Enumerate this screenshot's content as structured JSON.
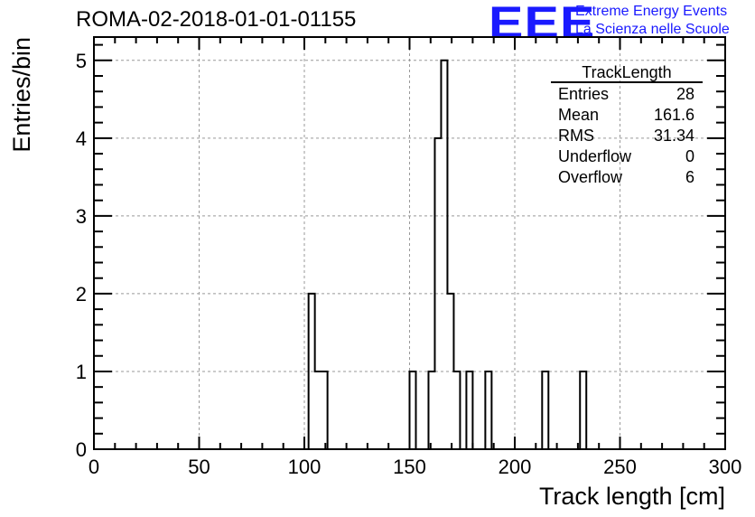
{
  "header": {
    "title": "ROMA-02-2018-01-01-01155",
    "logo_text": "EEE",
    "logo_line1": "Extreme Energy Events",
    "logo_line2": "La Scienza nelle Scuole"
  },
  "stats": {
    "name": "TrackLength",
    "rows": [
      {
        "label": "Entries",
        "value": "28"
      },
      {
        "label": "Mean",
        "value": "161.6"
      },
      {
        "label": "RMS",
        "value": "31.34"
      },
      {
        "label": "Underflow",
        "value": "0"
      },
      {
        "label": "Overflow",
        "value": "6"
      }
    ]
  },
  "chart_data": {
    "type": "bar",
    "title": "ROMA-02-2018-01-01-01155",
    "xlabel": "Track length [cm]",
    "ylabel": "Entries/bin",
    "xlim": [
      0,
      300
    ],
    "ylim": [
      0,
      5.3
    ],
    "bin_width": 3,
    "grid": true,
    "xticks": [
      0,
      50,
      100,
      150,
      200,
      250,
      300
    ],
    "yticks": [
      0,
      1,
      2,
      3,
      4,
      5
    ],
    "bins": [
      {
        "x": 102,
        "count": 2
      },
      {
        "x": 105,
        "count": 1
      },
      {
        "x": 108,
        "count": 1
      },
      {
        "x": 150,
        "count": 1
      },
      {
        "x": 159,
        "count": 1
      },
      {
        "x": 162,
        "count": 4
      },
      {
        "x": 165,
        "count": 5
      },
      {
        "x": 168,
        "count": 2
      },
      {
        "x": 171,
        "count": 1
      },
      {
        "x": 177,
        "count": 1
      },
      {
        "x": 186,
        "count": 1
      },
      {
        "x": 213,
        "count": 1
      },
      {
        "x": 231,
        "count": 1
      }
    ]
  }
}
